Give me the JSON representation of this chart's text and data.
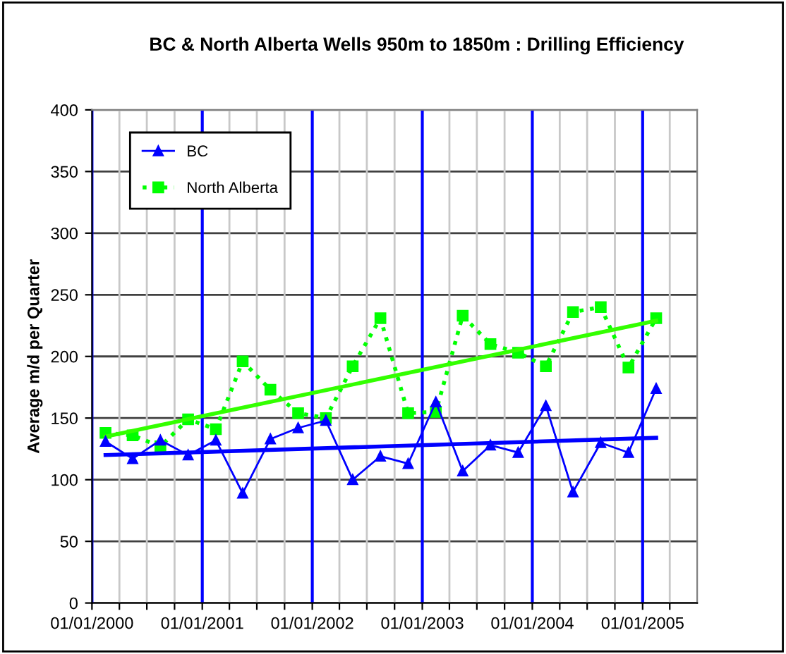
{
  "chart_data": {
    "type": "line",
    "title": "BC & North Alberta Wells 950m to 1850m : Drilling Efficiency",
    "ylabel": "Average m/d per Quarter",
    "x": [
      "2000-02-15",
      "2000-05-15",
      "2000-08-15",
      "2000-11-15",
      "2001-02-15",
      "2001-05-15",
      "2001-08-15",
      "2001-11-15",
      "2002-02-15",
      "2002-05-15",
      "2002-08-15",
      "2002-11-15",
      "2003-02-15",
      "2003-05-15",
      "2003-08-15",
      "2003-11-15",
      "2004-02-15",
      "2004-05-15",
      "2004-08-15",
      "2004-11-15",
      "2005-02-15"
    ],
    "series": [
      {
        "name": "BC",
        "color": "#0000ff",
        "marker": "triangle",
        "line_style": "solid",
        "values": [
          131,
          117,
          132,
          120,
          132,
          89,
          133,
          142,
          148,
          100,
          119,
          113,
          163,
          107,
          128,
          122,
          160,
          90,
          130,
          122,
          174
        ]
      },
      {
        "name": "North Alberta",
        "color": "#00ff00",
        "marker": "square",
        "line_style": "dotted",
        "values": [
          138,
          136,
          127,
          149,
          141,
          196,
          173,
          154,
          150,
          192,
          231,
          154,
          155,
          233,
          210,
          203,
          192,
          236,
          240,
          191,
          231
        ]
      },
      {
        "x": [
          "2000-02-15",
          "2005-02-15"
        ],
        "color": "#0000ff",
        "marker": "none",
        "line_style": "solid",
        "values": [
          120,
          134
        ]
      },
      {
        "x": [
          "2000-02-15",
          "2005-02-15"
        ],
        "color": "#33ff00",
        "marker": "none",
        "line_style": "solid",
        "values": [
          135,
          229
        ]
      }
    ],
    "xlim": [
      "2000-01-01",
      "2005-07-01"
    ],
    "xticks": [
      {
        "value": "2000-01-01",
        "label": "01/01/2000"
      },
      {
        "value": "2000-04-01",
        "label": null
      },
      {
        "value": "2000-07-01",
        "label": null
      },
      {
        "value": "2000-10-01",
        "label": null
      },
      {
        "value": "2001-01-01",
        "label": "01/01/2001"
      },
      {
        "value": "2001-04-01",
        "label": null
      },
      {
        "value": "2001-07-01",
        "label": null
      },
      {
        "value": "2001-10-01",
        "label": null
      },
      {
        "value": "2002-01-01",
        "label": "01/01/2002"
      },
      {
        "value": "2002-04-01",
        "label": null
      },
      {
        "value": "2002-07-01",
        "label": null
      },
      {
        "value": "2002-10-01",
        "label": null
      },
      {
        "value": "2003-01-01",
        "label": "01/01/2003"
      },
      {
        "value": "2003-04-01",
        "label": null
      },
      {
        "value": "2003-07-01",
        "label": null
      },
      {
        "value": "2003-10-01",
        "label": null
      },
      {
        "value": "2004-01-01",
        "label": "01/01/2004"
      },
      {
        "value": "2004-04-01",
        "label": null
      },
      {
        "value": "2004-07-01",
        "label": null
      },
      {
        "value": "2004-10-01",
        "label": null
      },
      {
        "value": "2005-01-01",
        "label": "01/01/2005"
      },
      {
        "value": "2005-04-01",
        "label": null
      }
    ],
    "ylim": [
      0,
      400
    ],
    "yticks": [
      0,
      50,
      100,
      150,
      200,
      250,
      300,
      350,
      400
    ],
    "grid": true,
    "legend": "top left"
  }
}
